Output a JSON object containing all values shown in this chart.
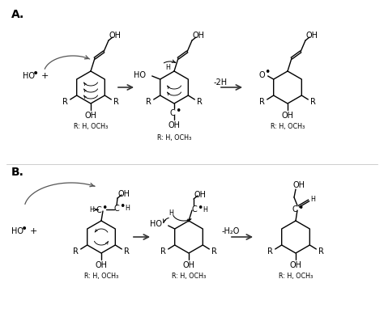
{
  "bg_color": "#ffffff",
  "text_color": "#000000",
  "label_A": "A.",
  "label_B": "B.",
  "minus_2H": "-2H",
  "minus_H2O": "-H₂O",
  "R_label": "R: H, OCH₃",
  "R_text": "R",
  "OH_text": "OH",
  "HO_text": "HO",
  "O_text": "O",
  "H_text": "H",
  "C_text": "C",
  "plus_text": "+"
}
